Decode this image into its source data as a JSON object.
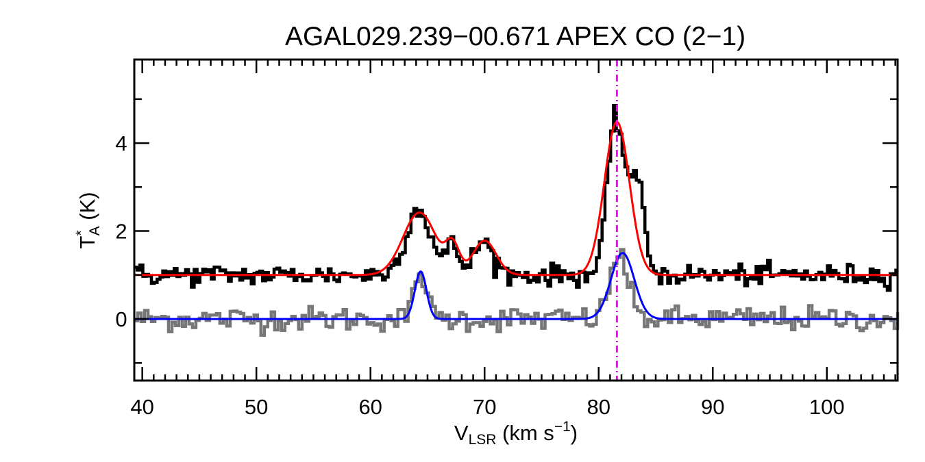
{
  "chart_data": {
    "type": "line",
    "title": "AGAL029.239−00.671   APEX CO (2−1)",
    "xlabel": {
      "main": "V",
      "sub": "LSR",
      "unit": " (km s",
      "sup": "−1",
      "close": ")"
    },
    "ylabel": {
      "main": "T",
      "sup": "*",
      "sub": "A",
      "unit": " (K)"
    },
    "xlim": [
      39.3,
      106.2
    ],
    "ylim": [
      -1.4,
      5.9
    ],
    "x_ticks": [
      40,
      50,
      60,
      70,
      80,
      90,
      100
    ],
    "x_tick_labels": [
      "40",
      "50",
      "60",
      "70",
      "80",
      "90",
      "100"
    ],
    "y_ticks": [
      0,
      2,
      4
    ],
    "y_tick_labels": [
      "0",
      "2",
      "4"
    ],
    "grid": false,
    "vline": {
      "x": 81.6,
      "color": "#ff00ff",
      "style": "dash-dot"
    },
    "series": [
      {
        "kind": "observed-step",
        "color": "#000000",
        "offset": 1.0,
        "noise_rms": 0.12,
        "bin_width": 0.25,
        "components": [
          {
            "center": 64.2,
            "amplitude": 1.5,
            "fwhm": 2.6
          },
          {
            "center": 67.2,
            "amplitude": 0.65,
            "fwhm": 1.3
          },
          {
            "center": 69.9,
            "amplitude": 0.75,
            "fwhm": 2.0
          },
          {
            "center": 81.5,
            "amplitude": 3.5,
            "fwhm": 1.7
          },
          {
            "center": 83.3,
            "amplitude": 2.1,
            "fwhm": 1.6
          }
        ]
      },
      {
        "kind": "fit",
        "color": "#ff0000",
        "offset": 1.0,
        "components": [
          {
            "center": 64.3,
            "amplitude": 1.42,
            "fwhm": 3.4
          },
          {
            "center": 67.2,
            "amplitude": 0.62,
            "fwhm": 1.4
          },
          {
            "center": 70.0,
            "amplitude": 0.78,
            "fwhm": 2.4
          },
          {
            "center": 81.6,
            "amplitude": 3.48,
            "fwhm": 2.6
          }
        ]
      },
      {
        "kind": "observed-step",
        "color": "#777777",
        "offset": 0.0,
        "noise_rms": 0.14,
        "bin_width": 0.3,
        "components": [
          {
            "center": 64.4,
            "amplitude": 1.1,
            "fwhm": 1.2
          },
          {
            "center": 81.8,
            "amplitude": 1.5,
            "fwhm": 1.8
          }
        ]
      },
      {
        "kind": "fit",
        "color": "#0000ff",
        "offset": 0.0,
        "components": [
          {
            "center": 64.4,
            "amplitude": 1.08,
            "fwhm": 1.2
          },
          {
            "center": 82.1,
            "amplitude": 1.5,
            "fwhm": 2.4
          }
        ]
      }
    ]
  }
}
